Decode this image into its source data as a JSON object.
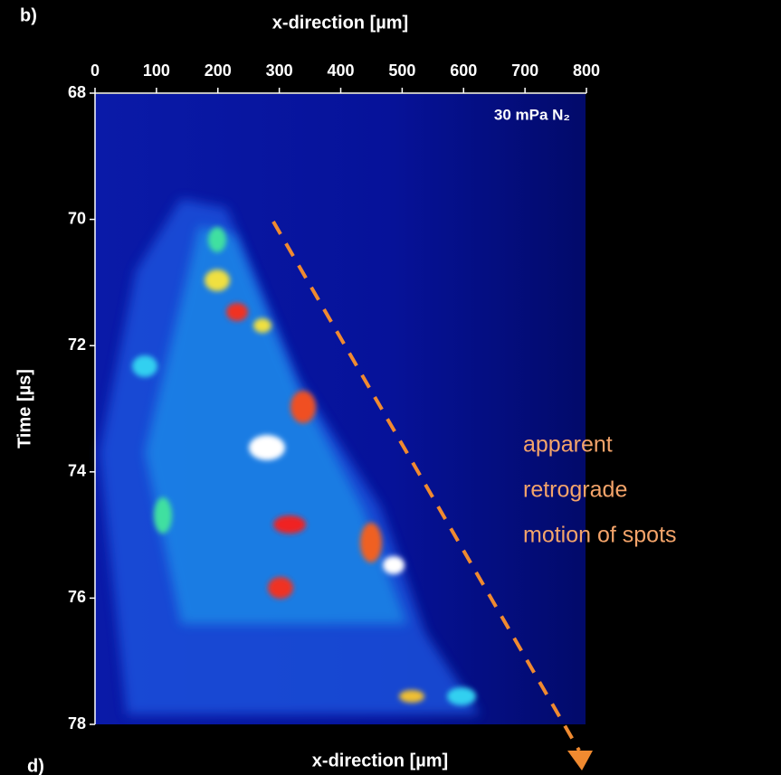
{
  "chart_data": {
    "type": "heatmap",
    "panel_label": "b)",
    "title": "x-direction [µm]",
    "y_label": "Time [µs]",
    "legend_label": "30 mPa N₂",
    "xlim": [
      0,
      800
    ],
    "xticks": [
      0,
      100,
      200,
      300,
      400,
      500,
      600,
      700,
      800
    ],
    "ylim": [
      68,
      78
    ],
    "yticks": [
      68,
      70,
      72,
      74,
      76,
      78
    ],
    "annotation": [
      "apparent",
      "retrograde",
      "motion of spots"
    ],
    "annotation_color": "#f4a46a",
    "arrow_color": "#f08a30"
  },
  "panel_d": {
    "label": "d)",
    "x_label": "x-direction [µm]"
  }
}
